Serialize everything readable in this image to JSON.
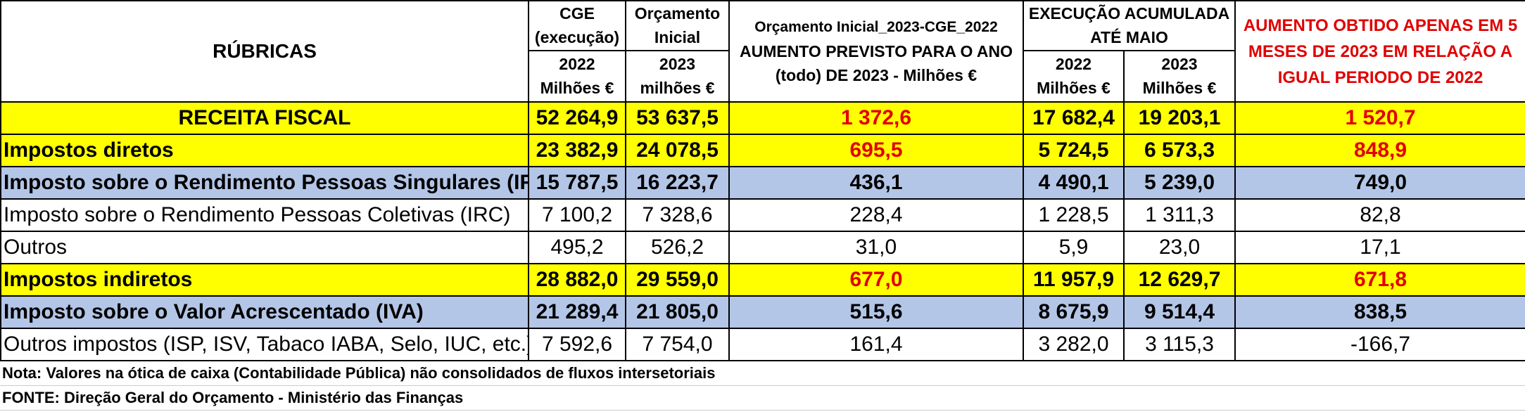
{
  "header": {
    "rubricas": "RÚBRICAS",
    "cge_top": "CGE (execução)",
    "orc_top": "Orçamento Inicial",
    "aumento_line1": "Orçamento Inicial_2023-CGE_2022",
    "aumento_line2": "AUMENTO PREVISTO PARA O ANO (todo) DE 2023 - Milhões €",
    "execucao_top": "EXECUÇÃO ACUMULADA ATÉ MAIO",
    "obtido": "AUMENTO OBTIDO APENAS EM 5 MESES DE 2023 EM RELAÇÃO A IGUAL PERIODO DE 2022",
    "cge_sub_year": "2022",
    "cge_sub_unit": "Milhões €",
    "orc_sub_year": "2023",
    "orc_sub_unit": "milhões €",
    "exec_2022_year": "2022",
    "exec_2022_unit": "Milhões €",
    "exec_2023_year": "2023",
    "exec_2023_unit": "Milhões €"
  },
  "rows": [
    {
      "label": "RECEITA FISCAL",
      "cge": "52 264,9",
      "orc": "53 637,5",
      "aumento": "1 372,6",
      "exec2022": "17 682,4",
      "exec2023": "19 203,1",
      "obtido": "1 520,7"
    },
    {
      "label": "Impostos diretos",
      "cge": "23 382,9",
      "orc": "24 078,5",
      "aumento": "695,5",
      "exec2022": "5 724,5",
      "exec2023": "6 573,3",
      "obtido": "848,9"
    },
    {
      "label": "Imposto sobre o Rendimento Pessoas Singulares (IRS)",
      "cge": "15 787,5",
      "orc": "16 223,7",
      "aumento": "436,1",
      "exec2022": "4 490,1",
      "exec2023": "5 239,0",
      "obtido": "749,0"
    },
    {
      "label": "Imposto sobre o Rendimento Pessoas Coletivas (IRC)",
      "cge": "7 100,2",
      "orc": "7 328,6",
      "aumento": "228,4",
      "exec2022": "1 228,5",
      "exec2023": "1 311,3",
      "obtido": "82,8"
    },
    {
      "label": "Outros",
      "cge": "495,2",
      "orc": "526,2",
      "aumento": "31,0",
      "exec2022": "5,9",
      "exec2023": "23,0",
      "obtido": "17,1"
    },
    {
      "label": "Impostos indiretos",
      "cge": "28 882,0",
      "orc": "29 559,0",
      "aumento": "677,0",
      "exec2022": "11 957,9",
      "exec2023": "12 629,7",
      "obtido": "671,8"
    },
    {
      "label": "Imposto sobre o Valor Acrescentado (IVA)",
      "cge": "21 289,4",
      "orc": "21 805,0",
      "aumento": "515,6",
      "exec2022": "8 675,9",
      "exec2023": "9 514,4",
      "obtido": "838,5"
    },
    {
      "label": "Outros impostos (ISP, ISV, Tabaco IABA, Selo, IUC, etc.)",
      "cge": "7 592,6",
      "orc": "7 754,0",
      "aumento": "161,4",
      "exec2022": "3 282,0",
      "exec2023": "3 115,3",
      "obtido": "-166,7"
    }
  ],
  "notes": {
    "nota": "Nota: Valores na ótica de caixa (Contabilidade Pública) não consolidados de fluxos intersetoriais",
    "fonte": "FONTE: Direção Geral do Orçamento - Ministério das Finanças"
  },
  "colors": {
    "yellow": "#ffff00",
    "blue": "#b4c6e7",
    "red": "#e00000"
  }
}
